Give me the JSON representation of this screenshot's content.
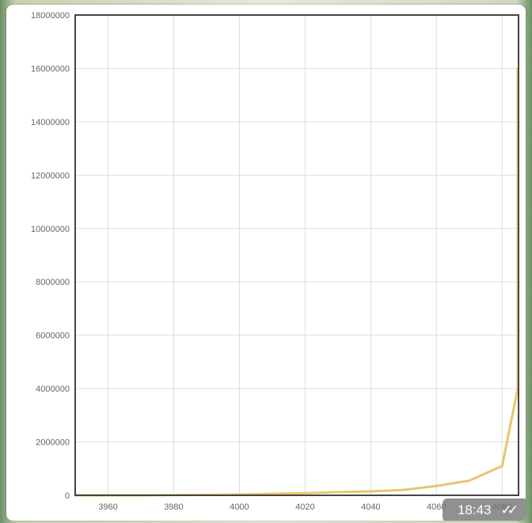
{
  "chart_data": {
    "type": "line",
    "title": "",
    "xlabel": "",
    "ylabel": "",
    "xlim": [
      3950,
      4085
    ],
    "ylim": [
      0,
      18000000
    ],
    "x_ticks": [
      3960,
      3980,
      4000,
      4020,
      4040,
      4060,
      4080
    ],
    "x_tick_labels": [
      "3960",
      "3980",
      "4000",
      "4020",
      "4040",
      "4060",
      "4080"
    ],
    "y_ticks": [
      0,
      2000000,
      4000000,
      6000000,
      8000000,
      10000000,
      12000000,
      14000000,
      16000000,
      18000000
    ],
    "y_tick_labels": [
      "0",
      "2000000",
      "4000000",
      "6000000",
      "8000000",
      "10000000",
      "12000000",
      "14000000",
      "16000000",
      "18000000"
    ],
    "grid": true,
    "legend": "none",
    "series": [
      {
        "color": "#e8c66a",
        "x": [
          3950,
          3960,
          3970,
          3980,
          3990,
          4000,
          4010,
          4020,
          4030,
          4040,
          4050,
          4060,
          4070,
          4080,
          4090,
          4095
        ],
        "y": [
          0,
          0,
          0,
          10000,
          20000,
          30000,
          60000,
          80000,
          120000,
          150000,
          200000,
          350000,
          550000,
          1100000,
          4000000,
          16000000
        ]
      }
    ]
  },
  "status": {
    "time": "18:43",
    "read_icon": "double-check-icon",
    "read_glyph": "✓✓"
  }
}
